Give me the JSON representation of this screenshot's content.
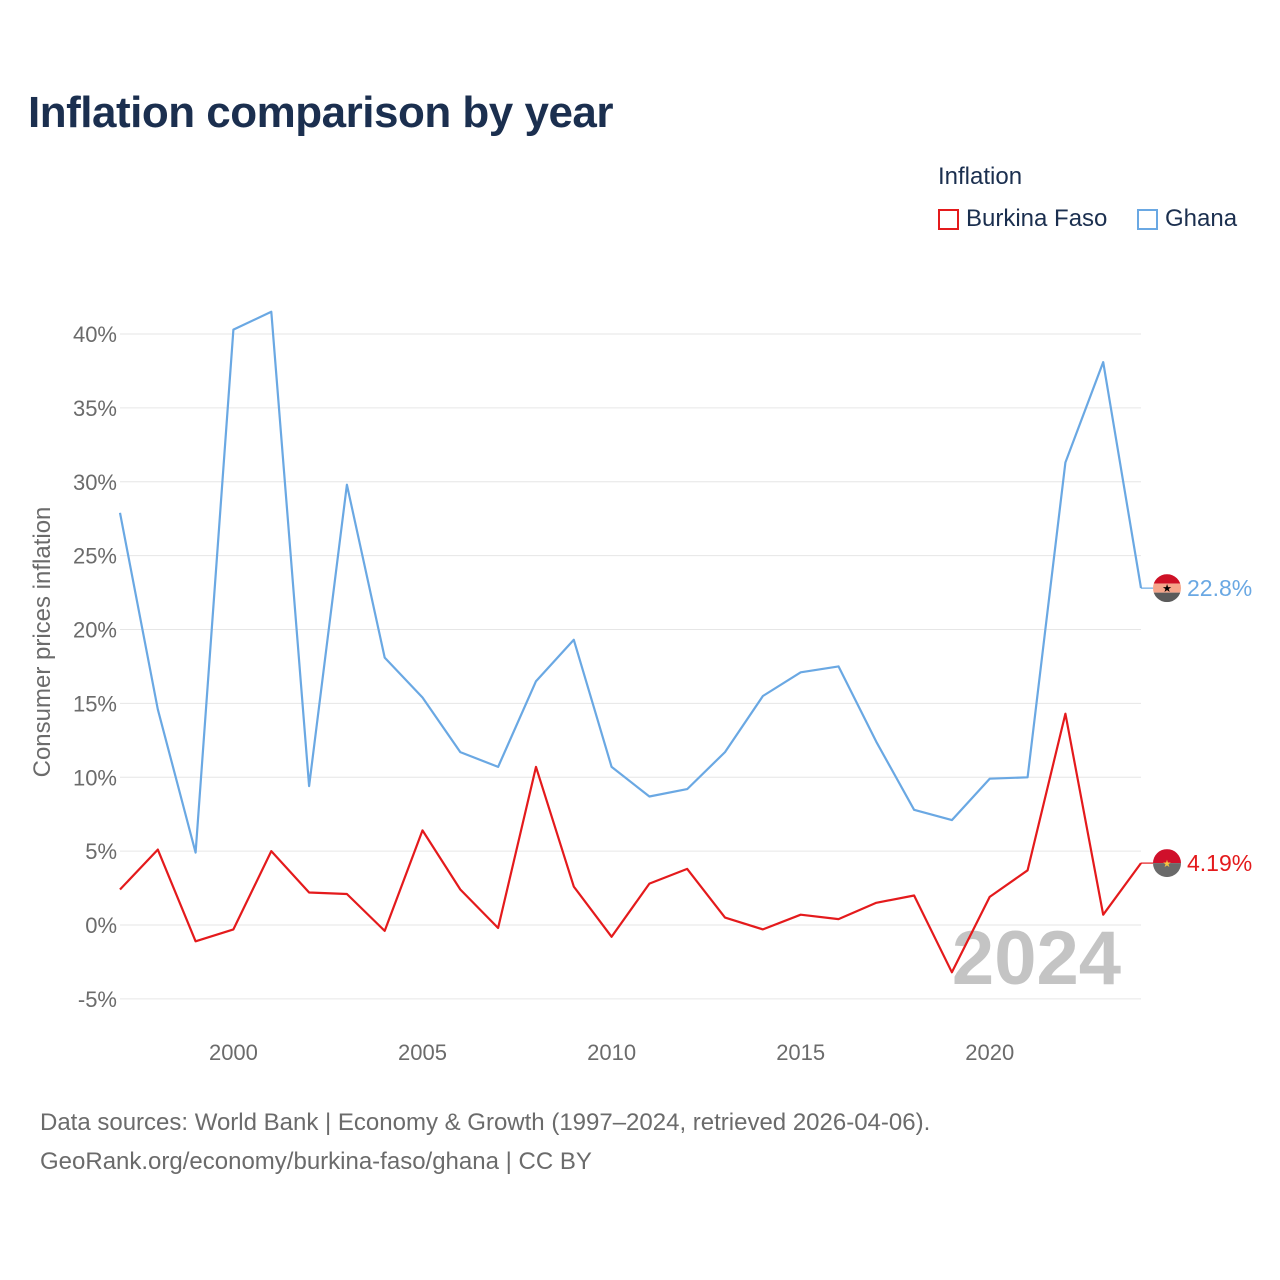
{
  "colors": {
    "burkina_faso": "#e41a1c",
    "ghana": "#6aa8e3",
    "title": "#1b2f4f",
    "axis_text": "#6b6b6b",
    "grid": "#e6e6e6",
    "year_watermark": "#c4c4c4"
  },
  "title": "Inflation comparison by year",
  "legend": {
    "title": "Inflation",
    "items": [
      "Burkina Faso",
      "Ghana"
    ]
  },
  "chart_data": {
    "type": "line",
    "title": "Inflation comparison by year",
    "xlabel": "",
    "ylabel": "Consumer prices inflation",
    "xlim": [
      1997,
      2024
    ],
    "ylim": [
      -5,
      42
    ],
    "x_ticks": [
      2000,
      2005,
      2010,
      2015,
      2020
    ],
    "y_ticks": [
      -5,
      0,
      5,
      10,
      15,
      20,
      25,
      30,
      35,
      40
    ],
    "y_tick_labels": [
      "-5%",
      "0%",
      "5%",
      "10%",
      "15%",
      "20%",
      "25%",
      "30%",
      "35%",
      "40%"
    ],
    "grid": true,
    "legend_position": "top-right",
    "year_watermark": "2024",
    "x": [
      1997,
      1998,
      1999,
      2000,
      2001,
      2002,
      2003,
      2004,
      2005,
      2006,
      2007,
      2008,
      2009,
      2010,
      2011,
      2012,
      2013,
      2014,
      2015,
      2016,
      2017,
      2018,
      2019,
      2020,
      2021,
      2022,
      2023,
      2024
    ],
    "series": [
      {
        "name": "Burkina Faso",
        "color_key": "burkina_faso",
        "end_label": "4.19%",
        "values": [
          2.4,
          5.1,
          -1.1,
          -0.3,
          5.0,
          2.2,
          2.1,
          -0.4,
          6.4,
          2.4,
          -0.2,
          10.7,
          2.6,
          -0.8,
          2.8,
          3.8,
          0.5,
          -0.3,
          0.7,
          0.4,
          1.5,
          2.0,
          -3.2,
          1.9,
          3.7,
          14.3,
          0.7,
          4.19
        ]
      },
      {
        "name": "Ghana",
        "color_key": "ghana",
        "end_label": "22.8%",
        "values": [
          27.9,
          14.6,
          4.9,
          40.3,
          41.5,
          9.4,
          29.8,
          18.1,
          15.4,
          11.7,
          10.7,
          16.5,
          19.3,
          10.7,
          8.7,
          9.2,
          11.7,
          15.5,
          17.1,
          17.5,
          12.4,
          7.8,
          7.1,
          9.9,
          10.0,
          31.3,
          38.1,
          22.8
        ]
      }
    ]
  },
  "footer": {
    "source": "Data sources: World Bank | Economy & Growth (1997–2024, retrieved 2026-04-06).",
    "link": "GeoRank.org/economy/burkina-faso/ghana | CC BY"
  }
}
